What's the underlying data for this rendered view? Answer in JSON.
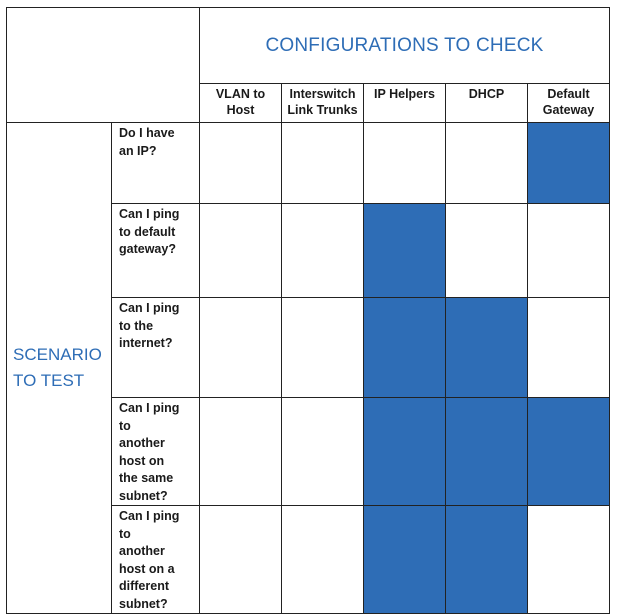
{
  "table": {
    "config_title": "CONFIGURATIONS TO CHECK",
    "scenario_title": "SCENARIO\nTO TEST",
    "columns": [
      "VLAN to\nHost",
      "Interswitch\nLink Trunks",
      "IP Helpers",
      "DHCP",
      "Default\nGateway"
    ],
    "rows": [
      {
        "question": "Do I have\nan IP?",
        "checks": [
          false,
          false,
          false,
          false,
          true
        ]
      },
      {
        "question": "Can I ping\nto default\ngateway?",
        "checks": [
          false,
          false,
          true,
          false,
          false
        ]
      },
      {
        "question": "Can I ping\nto the\ninternet?",
        "checks": [
          false,
          false,
          true,
          true,
          false
        ]
      },
      {
        "question": "Can I ping\nto\nanother\nhost on\nthe same\nsubnet?",
        "checks": [
          false,
          false,
          true,
          true,
          true
        ]
      },
      {
        "question": "Can I ping\nto\nanother\nhost on a\ndifferent\nsubnet?",
        "checks": [
          false,
          false,
          true,
          true,
          false
        ]
      }
    ],
    "fill_color": "#2e6db6",
    "title_color": "#2e6db6"
  }
}
